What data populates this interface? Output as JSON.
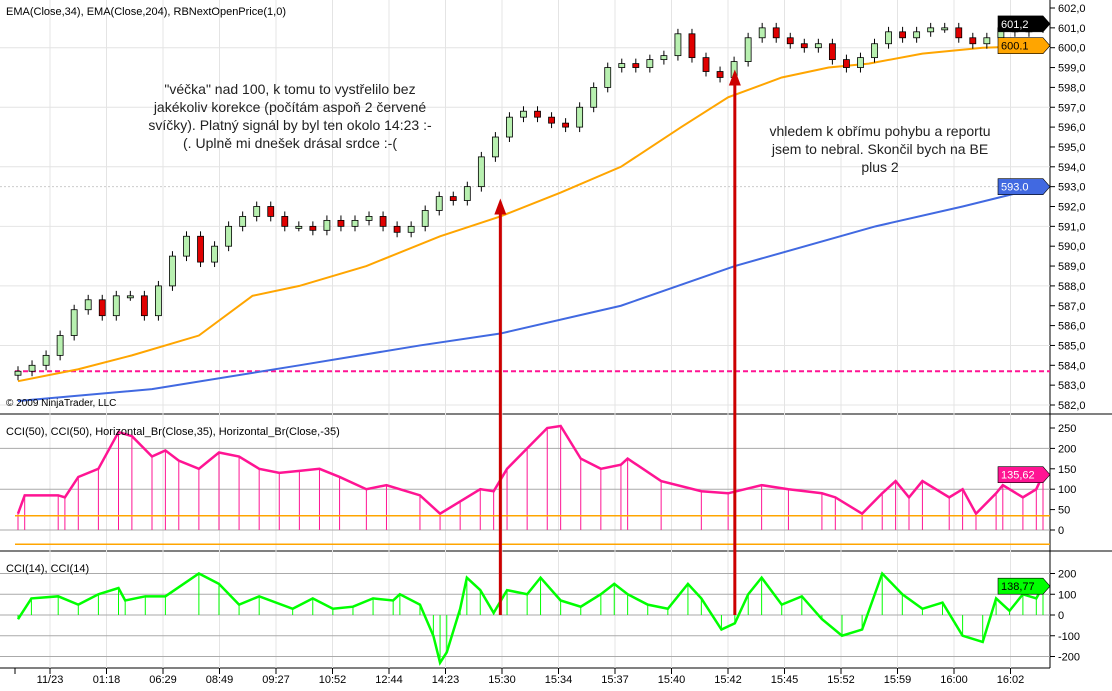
{
  "chart_data": [
    {
      "type": "candlestick",
      "title": "EMA(Close,34), EMA(Close,204), RBNextOpenPrice(1,0)",
      "ylim": [
        582,
        602
      ],
      "yticks": [
        "602,0",
        "601,0",
        "600,0",
        "599,0",
        "598,0",
        "597,0",
        "596,0",
        "595,0",
        "594,0",
        "593,0",
        "592,0",
        "591,0",
        "590,0",
        "589,0",
        "588,0",
        "587,0",
        "586,0",
        "585,0",
        "584,0",
        "583,0",
        "582,0"
      ],
      "closes": [
        583.7,
        584.0,
        584.5,
        585.5,
        586.8,
        587.3,
        586.5,
        587.5,
        587.5,
        586.5,
        588,
        589.5,
        590.5,
        589.2,
        590,
        591,
        591.5,
        592,
        591.5,
        591,
        591,
        590.8,
        591.3,
        591,
        591.3,
        591.5,
        591,
        590.7,
        591,
        591.8,
        592.5,
        592.3,
        593,
        594.5,
        595.5,
        596.5,
        596.8,
        596.5,
        596.2,
        596,
        597,
        598,
        599,
        599.2,
        599,
        599.4,
        599.6,
        600.7,
        599.5,
        598.8,
        598.5,
        599.3,
        600.5,
        601,
        600.5,
        600.2,
        600,
        600.2,
        599.4,
        599,
        599.5,
        600.2,
        600.8,
        600.5,
        600.8,
        601,
        601,
        600.5,
        600.2,
        600.5,
        601,
        600.8,
        601,
        601.2
      ],
      "series": [
        {
          "name": "EMA(Close,34)",
          "color": "#FFA500",
          "last_label": "600.1",
          "points": [
            [
              0,
              583.2
            ],
            [
              9,
              583.8
            ],
            [
              17,
              584.5
            ],
            [
              27,
              585.5
            ],
            [
              35,
              587.5
            ],
            [
              42,
              588
            ],
            [
              52,
              589
            ],
            [
              63,
              590.5
            ],
            [
              72,
              591.5
            ],
            [
              81,
              592.7
            ],
            [
              90,
              594
            ],
            [
              99,
              596
            ],
            [
              106,
              597.5
            ],
            [
              114,
              598.5
            ],
            [
              121,
              599
            ],
            [
              127,
              599.2
            ],
            [
              135,
              599.7
            ],
            [
              144,
              600
            ],
            [
              153,
              600.1
            ]
          ]
        },
        {
          "name": "EMA(Close,204)",
          "color": "#4169E1",
          "last_label": "593.0",
          "points": [
            [
              0,
              582.2
            ],
            [
              20,
              582.8
            ],
            [
              42,
              584
            ],
            [
              60,
              585
            ],
            [
              72,
              585.6
            ],
            [
              90,
              587
            ],
            [
              107,
              589
            ],
            [
              128,
              591
            ],
            [
              141,
              592
            ],
            [
              153,
              593
            ]
          ]
        },
        {
          "name": "RBNextOpenPrice(1,0)",
          "color": "#FF1493",
          "value": 583.7
        }
      ],
      "last_price_label": "601,2",
      "copyright": "© 2009 NinjaTrader, LLC"
    },
    {
      "type": "line",
      "title": "CCI(50), CCI(50), Horizontal_Br(Close,35), Horizontal_Br(Close,-35)",
      "ylim": [
        -40,
        270
      ],
      "yticks": [
        "250",
        "200",
        "150",
        "100",
        "50",
        "0"
      ],
      "levels": [
        35,
        -35
      ],
      "last_label": "135,62",
      "color": "#FF1493",
      "points": [
        [
          0,
          40
        ],
        [
          1,
          85
        ],
        [
          6,
          85
        ],
        [
          7,
          80
        ],
        [
          9,
          130
        ],
        [
          12,
          150
        ],
        [
          15,
          240
        ],
        [
          17,
          230
        ],
        [
          20,
          180
        ],
        [
          22,
          195
        ],
        [
          24,
          170
        ],
        [
          27,
          150
        ],
        [
          30,
          190
        ],
        [
          33,
          180
        ],
        [
          36,
          150
        ],
        [
          39,
          140
        ],
        [
          42,
          145
        ],
        [
          45,
          150
        ],
        [
          48,
          130
        ],
        [
          52,
          100
        ],
        [
          55,
          110
        ],
        [
          60,
          85
        ],
        [
          63,
          40
        ],
        [
          66,
          70
        ],
        [
          69,
          100
        ],
        [
          71,
          95
        ],
        [
          73,
          150
        ],
        [
          76,
          200
        ],
        [
          79,
          250
        ],
        [
          81,
          255
        ],
        [
          84,
          175
        ],
        [
          87,
          150
        ],
        [
          90,
          160
        ],
        [
          91,
          175
        ],
        [
          96,
          120
        ],
        [
          102,
          95
        ],
        [
          106,
          90
        ],
        [
          111,
          110
        ],
        [
          115,
          100
        ],
        [
          120,
          90
        ],
        [
          122,
          80
        ],
        [
          126,
          40
        ],
        [
          129,
          90
        ],
        [
          131,
          120
        ],
        [
          133,
          80
        ],
        [
          135,
          120
        ],
        [
          139,
          80
        ],
        [
          141,
          100
        ],
        [
          143,
          40
        ],
        [
          146,
          90
        ],
        [
          147,
          110
        ],
        [
          150,
          80
        ],
        [
          152,
          100
        ],
        [
          153,
          136
        ]
      ]
    },
    {
      "type": "line",
      "title": "CCI(14), CCI(14)",
      "ylim": [
        -220,
        250
      ],
      "yticks": [
        "200",
        "100",
        "0",
        "-100",
        "-200"
      ],
      "last_label": "138,77",
      "color": "#00FF00",
      "points": [
        [
          0,
          -20
        ],
        [
          2,
          80
        ],
        [
          6,
          90
        ],
        [
          9,
          50
        ],
        [
          12,
          100
        ],
        [
          15,
          130
        ],
        [
          16,
          70
        ],
        [
          19,
          90
        ],
        [
          22,
          90
        ],
        [
          27,
          200
        ],
        [
          30,
          150
        ],
        [
          33,
          50
        ],
        [
          36,
          90
        ],
        [
          41,
          30
        ],
        [
          44,
          80
        ],
        [
          47,
          30
        ],
        [
          50,
          40
        ],
        [
          53,
          80
        ],
        [
          56,
          70
        ],
        [
          57,
          100
        ],
        [
          60,
          50
        ],
        [
          62,
          -100
        ],
        [
          63,
          -230
        ],
        [
          64,
          -180
        ],
        [
          66,
          30
        ],
        [
          67,
          180
        ],
        [
          69,
          120
        ],
        [
          71,
          10
        ],
        [
          73,
          120
        ],
        [
          76,
          100
        ],
        [
          78,
          180
        ],
        [
          81,
          70
        ],
        [
          84,
          40
        ],
        [
          87,
          100
        ],
        [
          89,
          150
        ],
        [
          91,
          100
        ],
        [
          94,
          50
        ],
        [
          97,
          30
        ],
        [
          100,
          150
        ],
        [
          102,
          80
        ],
        [
          105,
          -70
        ],
        [
          107,
          -40
        ],
        [
          109,
          100
        ],
        [
          111,
          180
        ],
        [
          114,
          50
        ],
        [
          117,
          90
        ],
        [
          120,
          -20
        ],
        [
          123,
          -100
        ],
        [
          126,
          -70
        ],
        [
          129,
          200
        ],
        [
          132,
          100
        ],
        [
          135,
          30
        ],
        [
          138,
          60
        ],
        [
          141,
          -100
        ],
        [
          144,
          -130
        ],
        [
          146,
          80
        ],
        [
          148,
          20
        ],
        [
          150,
          100
        ],
        [
          152,
          80
        ],
        [
          153,
          139
        ]
      ]
    }
  ],
  "x_axis": {
    "labels": [
      "11/23",
      "01:18",
      "06:29",
      "08:49",
      "09:27",
      "10:52",
      "12:44",
      "14:23",
      "15:30",
      "15:34",
      "15:37",
      "15:40",
      "15:42",
      "15:45",
      "15:52",
      "15:59",
      "16:00",
      "16:02"
    ],
    "bars": 154
  },
  "annotations": [
    {
      "text_lines": [
        "\"véčka\" nad 100, k tomu to vystřelilo bez",
        "jakékoliv korekce (počítám aspoň 2 červené",
        "svíčky). Platný signál by byl ten okolo 14:23 :-",
        "(. Uplně mi dnešek drásal srdce :-("
      ]
    },
    {
      "text_lines": [
        "vhledem k obřímu pohybu a reportu",
        "jsem to nebral. Skončil bych na BE",
        "plus 2"
      ]
    }
  ],
  "arrows": [
    {
      "from_bar": 72,
      "to_price": 592.2,
      "color": "#CC0000"
    },
    {
      "from_bar": 107,
      "to_price": 598.7,
      "color": "#CC0000"
    }
  ]
}
